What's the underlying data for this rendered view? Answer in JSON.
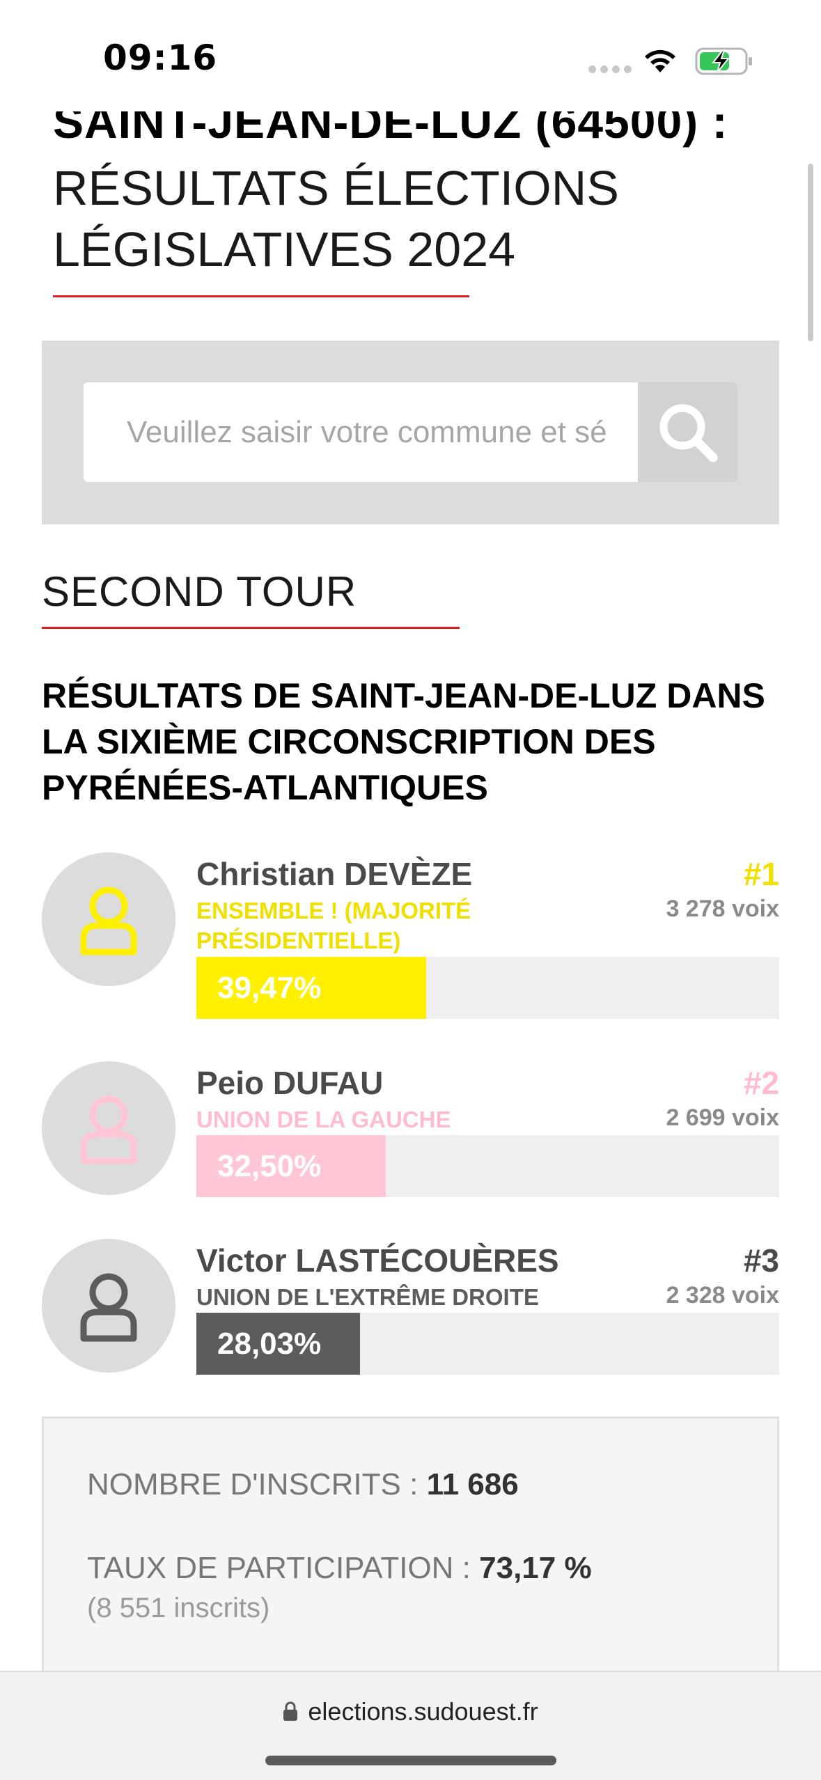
{
  "status_bar": {
    "time": "09:16"
  },
  "heading": {
    "city_line": "SAINT-JEAN-DE-LUZ (64500) :",
    "line1": "RÉSULTATS ÉLECTIONS",
    "line2": "LÉGISLATIVES 2024"
  },
  "search": {
    "placeholder": "Veuillez saisir votre commune et sé",
    "button_icon": "search-icon"
  },
  "section": {
    "title": "SECOND TOUR",
    "results_title": "RÉSULTATS DE SAINT-JEAN-DE-LUZ DANS LA SIXIÈME CIRCONSCRIPTION DES PYRÉNÉES-ATLANTIQUES"
  },
  "candidates": [
    {
      "name": "Christian DEVÈZE",
      "party": "ENSEMBLE ! (MAJORITÉ PRÉSIDENTIELLE)",
      "rank": "#1",
      "votes": "3 278 voix",
      "percent_label": "39,47%",
      "percent": 39.47,
      "color": "#fff000",
      "text_color": "#f0e000"
    },
    {
      "name": "Peio DUFAU",
      "party": "UNION DE LA GAUCHE",
      "rank": "#2",
      "votes": "2 699 voix",
      "percent_label": "32,50%",
      "percent": 32.5,
      "color": "#ffc6d6",
      "text_color": "#ffbcd0"
    },
    {
      "name": "Victor LASTÉCOUÈRES",
      "party": "UNION DE L'EXTRÊME DROITE",
      "rank": "#3",
      "votes": "2 328 voix",
      "percent_label": "28,03%",
      "percent": 28.03,
      "color": "#5c5c5c",
      "text_color": "#5c5c5c"
    }
  ],
  "stats": {
    "inscrits_label": "NOMBRE D'INSCRITS :",
    "inscrits_value": "11 686",
    "participation_label": "TAUX DE PARTICIPATION :",
    "participation_value": "73,17 %",
    "participation_sub": "(8 551 inscrits)"
  },
  "browser": {
    "url": "elections.sudouest.fr"
  }
}
